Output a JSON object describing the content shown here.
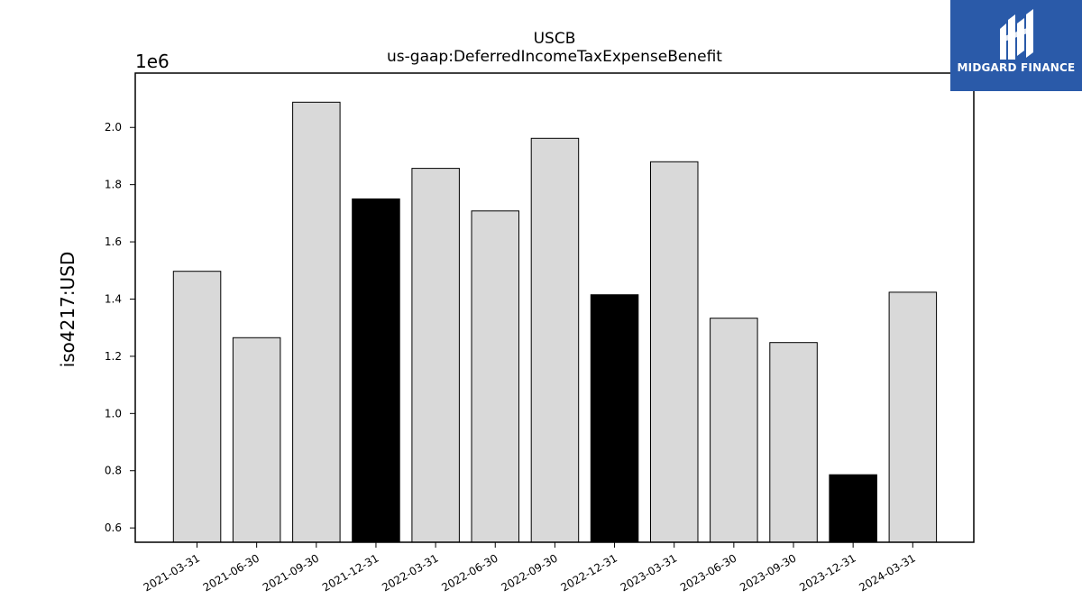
{
  "logo": {
    "text": "MIDGARD FINANCE",
    "background": "#2a5aa9"
  },
  "chart_data": {
    "type": "bar",
    "title": "USCB",
    "subtitle": "us-gaap:DeferredIncomeTaxExpenseBenefit",
    "xlabel": "",
    "ylabel": "iso4217:USD",
    "offset_label": "1e6",
    "scale": 1000000,
    "categories": [
      "2021-03-31",
      "2021-06-30",
      "2021-09-30",
      "2021-12-31",
      "2022-03-31",
      "2022-06-30",
      "2022-09-30",
      "2022-12-31",
      "2023-03-31",
      "2023-06-30",
      "2023-09-30",
      "2023-12-31",
      "2024-03-31"
    ],
    "values": [
      1497000,
      1265000,
      2088000,
      1750000,
      1857000,
      1708000,
      1962000,
      1415000,
      1880000,
      1333000,
      1248000,
      786000,
      1424000
    ],
    "highlight": [
      false,
      false,
      false,
      true,
      false,
      false,
      false,
      true,
      false,
      false,
      false,
      true,
      false
    ],
    "ylim": [
      550000,
      2190000
    ],
    "yticks": [
      "0.6",
      "0.8",
      "1.0",
      "1.2",
      "1.4",
      "1.6",
      "1.8",
      "2.0"
    ],
    "colors": {
      "bar": "#d9d9d9",
      "highlight": "#000000",
      "edge": "#000000"
    },
    "grid": false,
    "legend": "none"
  }
}
